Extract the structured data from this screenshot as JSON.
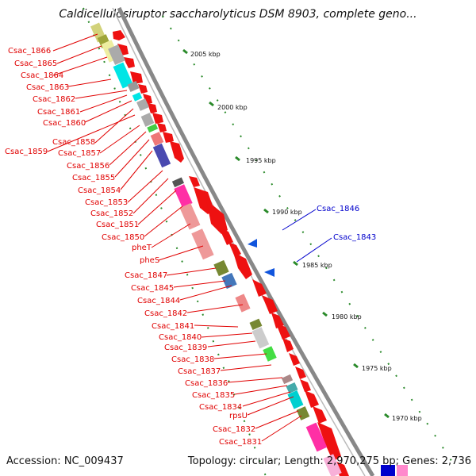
{
  "title": "Caldicellulosiruptor saccharolyticus DSM 8903, complete geno...",
  "footer": {
    "accession": "Accession: NC_009437",
    "summary": "Topology: circular; Length: 2,970,275 bp; Genes: 2,736"
  },
  "kbp_labels": [
    "2005 kbp",
    "2000 kbp",
    "1995 kbp",
    "1990 kbp",
    "1985 kbp",
    "1980 kbp",
    "1975 kbp",
    "1970 kbp"
  ],
  "gene_labels_left": [
    "Csac_1866",
    "Csac_1865",
    "Csac_1864",
    "Csac_1863",
    "Csac_1862",
    "Csac_1861",
    "Csac_1860",
    "Csac_1858",
    "Csac_1859",
    "Csac_1857",
    "Csac_1856",
    "Csac_1855",
    "Csac_1854",
    "Csac_1853",
    "Csac_1852",
    "Csac_1851",
    "Csac_1850",
    "pheT",
    "pheS",
    "Csac_1847",
    "Csac_1845",
    "Csac_1844",
    "Csac_1842",
    "Csac_1841",
    "Csac_1840",
    "Csac_1839",
    "Csac_1838",
    "Csac_1837",
    "Csac_1836",
    "Csac_1835",
    "Csac_1834",
    "rpsU",
    "Csac_1832",
    "Csac_1831"
  ],
  "gene_labels_right": [
    "Csac_1846",
    "Csac_1843"
  ],
  "colors": {
    "label_red": "#e00000",
    "label_blue": "#0000cc",
    "backbone": "#8a8a8a",
    "tick_green": "#2a8a2a",
    "gene_red": "#ee1111"
  }
}
